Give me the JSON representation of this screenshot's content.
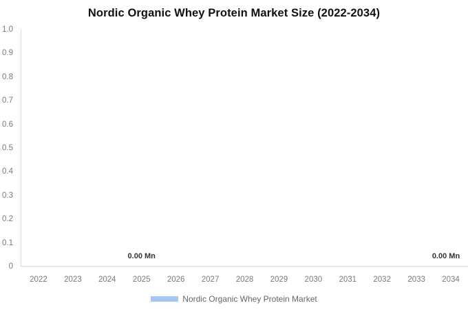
{
  "chart_data": {
    "type": "bar",
    "title": "Nordic Organic Whey Protein Market Size (2022-2034)",
    "categories": [
      "2022",
      "2023",
      "2024",
      "2025",
      "2026",
      "2027",
      "2028",
      "2029",
      "2030",
      "2031",
      "2032",
      "2033",
      "2034"
    ],
    "series": [
      {
        "name": "Nordic Organic Whey Protein Market",
        "values": [
          0,
          0,
          0,
          0,
          0,
          0,
          0,
          0,
          0,
          0,
          0,
          0,
          0
        ],
        "color": "#a3c9f2"
      }
    ],
    "value_unit": "Mn",
    "visible_value_labels": [
      {
        "category": "2025",
        "text": "0.00 Mn"
      },
      {
        "category": "2034",
        "text": "0.00 Mn"
      }
    ],
    "y_axis": {
      "min": 0,
      "max": 1.0,
      "ticks": [
        "1.0",
        "0.9",
        "0.8",
        "0.7",
        "0.6",
        "0.5",
        "0.4",
        "0.3",
        "0.2",
        "0.1",
        "0"
      ]
    },
    "xlabel": "",
    "ylabel": "",
    "grid": false,
    "legend": {
      "position": "bottom",
      "items": [
        {
          "label": "Nordic Organic Whey Protein Market",
          "swatch_color": "#a3c9f2"
        }
      ]
    }
  },
  "colors": {
    "background": "#ffffff",
    "title_text": "#111111",
    "axis_line": "#d9d9d9",
    "tick_text": "#7a7a7a",
    "value_label_text": "#333333",
    "legend_text": "#666666",
    "bar": "#a3c9f2"
  }
}
